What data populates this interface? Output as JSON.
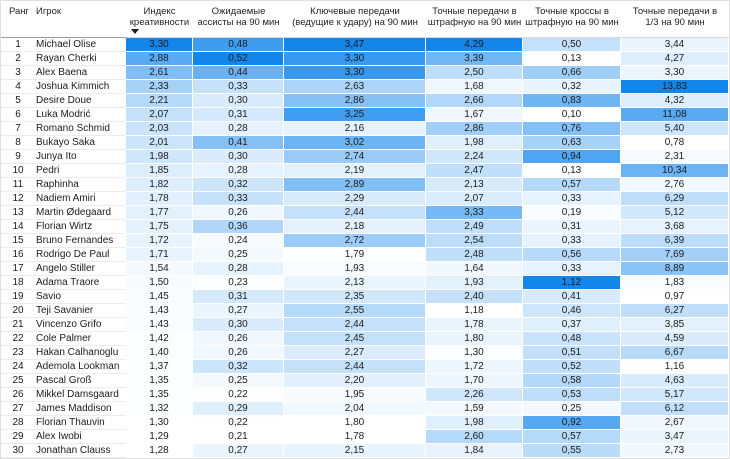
{
  "colors": {
    "heat_max": "#1386EC",
    "heat_min": "#FFFFFF",
    "text": "#1c1c1c",
    "header_underline_strong": "#9e9e9e",
    "header_underline_light": "#d9d9d9",
    "row_grid_line": "#ececec"
  },
  "sort": {
    "column_key": "creativity_index",
    "direction": "desc",
    "icon": "sort-descending-icon"
  },
  "chart_data": {
    "type": "table",
    "title": "",
    "legend_position": "none",
    "heatmap_columns": [
      "creativity_index",
      "expected_assists_per90",
      "key_passes_per90",
      "accurate_passes_box_per90",
      "accurate_crosses_box_per90",
      "accurate_passes_final_third_per90"
    ],
    "columns": [
      {
        "key": "rank",
        "label": "Ранг"
      },
      {
        "key": "player",
        "label": "Игрок"
      },
      {
        "key": "creativity_index",
        "label": "Индекс\nкреативности"
      },
      {
        "key": "expected_assists_per90",
        "label": "Ожидаемые\nассисты на 90 мин"
      },
      {
        "key": "key_passes_per90",
        "label": "Ключевые передачи\n(ведущие к удару) на 90 мин"
      },
      {
        "key": "accurate_passes_box_per90",
        "label": "Точные передачи в\nштрафную на 90 мин"
      },
      {
        "key": "accurate_crosses_box_per90",
        "label": "Точные кроссы в\nштрафную на 90 мин"
      },
      {
        "key": "accurate_passes_final_third_per90",
        "label": "Точные передачи в\n1/3 на 90 мин"
      }
    ],
    "rows": [
      [
        "1",
        "Michael Olise",
        "3,30",
        "0,48",
        "3,47",
        "4,29",
        "0,50",
        "3,44"
      ],
      [
        "2",
        "Rayan Cherki",
        "2,88",
        "0,52",
        "3,30",
        "3,39",
        "0,13",
        "4,27"
      ],
      [
        "3",
        "Alex Baena",
        "2,61",
        "0,44",
        "3,30",
        "2,50",
        "0,66",
        "3,30"
      ],
      [
        "4",
        "Joshua Kimmich",
        "2,33",
        "0,33",
        "2,63",
        "1,68",
        "0,32",
        "13,83"
      ],
      [
        "5",
        "Desire Doue",
        "2,21",
        "0,30",
        "2,86",
        "2,66",
        "0,83",
        "4,32"
      ],
      [
        "6",
        "Luka Modrić",
        "2,07",
        "0,31",
        "3,25",
        "1,67",
        "0,10",
        "11,08"
      ],
      [
        "7",
        "Romano Schmid",
        "2,03",
        "0,28",
        "2,16",
        "2,86",
        "0,76",
        "5,40"
      ],
      [
        "8",
        "Bukayo Saka",
        "2,01",
        "0,41",
        "3,02",
        "1,98",
        "0,63",
        "0,78"
      ],
      [
        "9",
        "Junya Ito",
        "1,98",
        "0,30",
        "2,74",
        "2,24",
        "0,94",
        "2,31"
      ],
      [
        "10",
        "Pedri",
        "1,85",
        "0,28",
        "2,19",
        "2,47",
        "0,13",
        "10,34"
      ],
      [
        "11",
        "Raphinha",
        "1,82",
        "0,32",
        "2,89",
        "2,13",
        "0,57",
        "2,76"
      ],
      [
        "12",
        "Nadiem Amiri",
        "1,78",
        "0,33",
        "2,29",
        "2,07",
        "0,33",
        "6,29"
      ],
      [
        "13",
        "Martin Ødegaard",
        "1,77",
        "0,26",
        "2,44",
        "3,33",
        "0,19",
        "5,12"
      ],
      [
        "14",
        "Florian Wirtz",
        "1,75",
        "0,36",
        "2,18",
        "2,49",
        "0,31",
        "3,68"
      ],
      [
        "15",
        "Bruno Fernandes",
        "1,72",
        "0,24",
        "2,72",
        "2,54",
        "0,33",
        "6,39"
      ],
      [
        "16",
        "Rodrigo De Paul",
        "1,71",
        "0,25",
        "1,79",
        "2,48",
        "0,56",
        "7,69"
      ],
      [
        "17",
        "Angelo Stiller",
        "1,54",
        "0,28",
        "1,93",
        "1,64",
        "0,33",
        "8,89"
      ],
      [
        "18",
        "Adama Traore",
        "1,50",
        "0,23",
        "2,13",
        "1,93",
        "1,12",
        "1,83"
      ],
      [
        "19",
        "Savio",
        "1,45",
        "0,31",
        "2,35",
        "2,40",
        "0,41",
        "0,97"
      ],
      [
        "20",
        "Teji Savanier",
        "1,43",
        "0,27",
        "2,55",
        "1,18",
        "0,46",
        "6,27"
      ],
      [
        "21",
        "Vincenzo Grifo",
        "1,43",
        "0,30",
        "2,44",
        "1,78",
        "0,37",
        "3,85"
      ],
      [
        "22",
        "Cole Palmer",
        "1,42",
        "0,26",
        "2,45",
        "1,80",
        "0,48",
        "4,59"
      ],
      [
        "23",
        "Hakan Calhanoglu",
        "1,40",
        "0,26",
        "2,27",
        "1,30",
        "0,51",
        "6,67"
      ],
      [
        "24",
        "Ademola Lookman",
        "1,37",
        "0,32",
        "2,44",
        "1,72",
        "0,52",
        "1,16"
      ],
      [
        "25",
        "Pascal Groß",
        "1,35",
        "0,25",
        "2,20",
        "1,70",
        "0,58",
        "4,63"
      ],
      [
        "26",
        "Mikkel Damsgaard",
        "1,35",
        "0,22",
        "1,95",
        "2,26",
        "0,53",
        "5,17"
      ],
      [
        "27",
        "James Maddison",
        "1,32",
        "0,29",
        "2,04",
        "1,59",
        "0,25",
        "6,12"
      ],
      [
        "28",
        "Florian Thauvin",
        "1,30",
        "0,22",
        "1,80",
        "1,98",
        "0,92",
        "2,67"
      ],
      [
        "29",
        "Alex Iwobi",
        "1,29",
        "0,21",
        "1,78",
        "2,60",
        "0,57",
        "3,47"
      ],
      [
        "30",
        "Jonathan Clauss",
        "1,28",
        "0,27",
        "2,15",
        "1,84",
        "0,55",
        "2,73"
      ]
    ]
  }
}
